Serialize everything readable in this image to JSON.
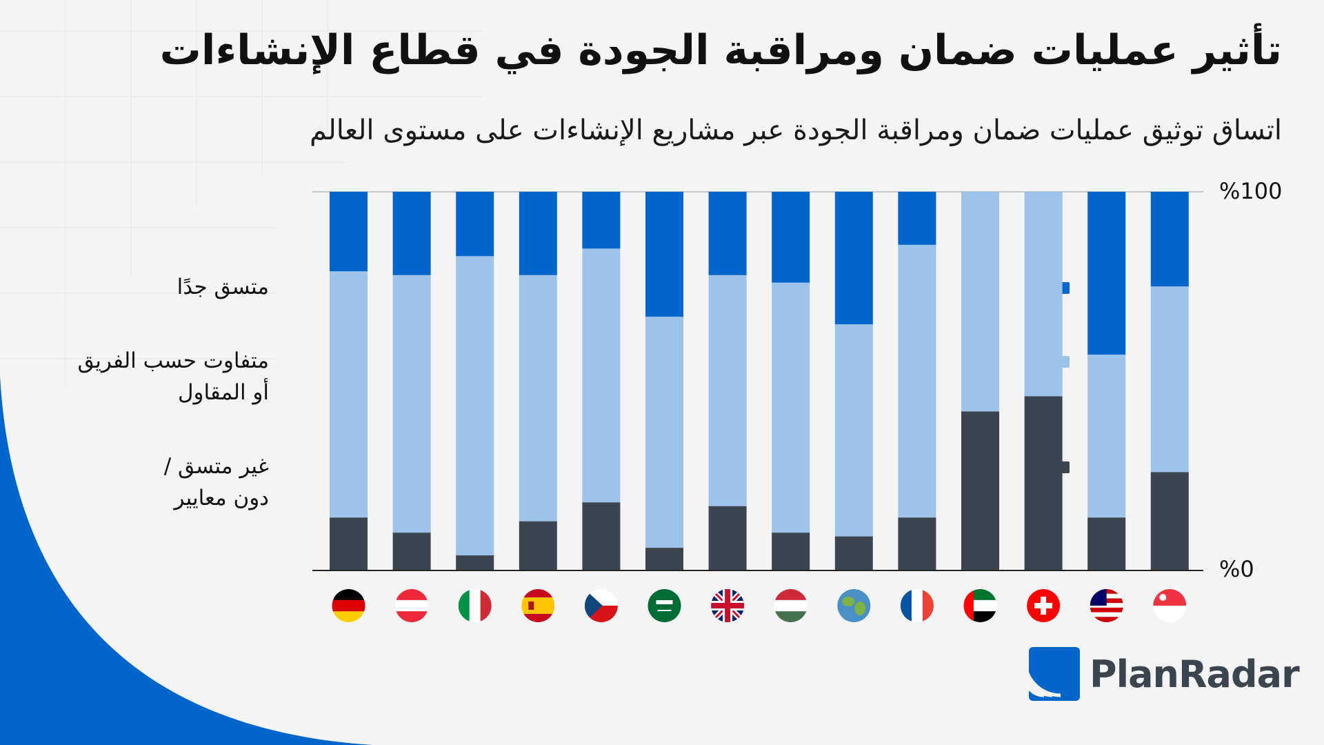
{
  "title": "تأثير عمليات ضمان ومراقبة الجودة في قطاع الإنشاءات",
  "subtitle": "اتساق توثيق عمليات ضمان ومراقبة الجودة عبر مشاريع الإنشاءات على مستوى العالم",
  "legend": [
    {
      "label": "متسق جدًا",
      "color": "#0066cc"
    },
    {
      "label": "متفاوت حسب الفريق أو المقاول",
      "color": "#9dc3ea"
    },
    {
      "label": "غير متسق / دون معايير",
      "color": "#3b4550"
    }
  ],
  "logo": {
    "text": "PlanRadar"
  },
  "chart_data": {
    "type": "bar",
    "stacked": true,
    "ylim": [
      0,
      100
    ],
    "ytick_labels": [
      "%0",
      "%100"
    ],
    "categories": [
      "germany",
      "austria",
      "italy",
      "spain",
      "czechia",
      "saudi-arabia",
      "united-kingdom",
      "hungary",
      "global",
      "france",
      "uae",
      "switzerland",
      "malaysia",
      "singapore"
    ],
    "series": [
      {
        "name": "غير متسق / دون معايير",
        "color": "#3b4550",
        "values": [
          14,
          10,
          4,
          13,
          18,
          6,
          17,
          10,
          9,
          14,
          42,
          46,
          14,
          26
        ]
      },
      {
        "name": "متفاوت حسب الفريق أو المقاول",
        "color": "#9dc3ea",
        "values": [
          65,
          68,
          79,
          65,
          67,
          61,
          61,
          66,
          56,
          72,
          58,
          54,
          43,
          49
        ]
      },
      {
        "name": "متسق جدًا",
        "color": "#0066cc",
        "values": [
          21,
          22,
          17,
          22,
          15,
          33,
          22,
          24,
          35,
          14,
          0,
          0,
          43,
          25
        ]
      }
    ]
  }
}
